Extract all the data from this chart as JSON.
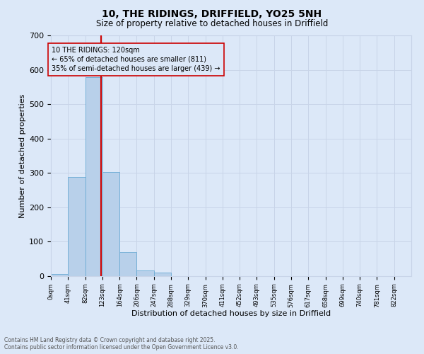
{
  "title1": "10, THE RIDINGS, DRIFFIELD, YO25 5NH",
  "title2": "Size of property relative to detached houses in Driffield",
  "xlabel": "Distribution of detached houses by size in Driffield",
  "ylabel": "Number of detached properties",
  "footer1": "Contains HM Land Registry data © Crown copyright and database right 2025.",
  "footer2": "Contains public sector information licensed under the Open Government Licence v3.0.",
  "bin_labels": [
    "0sqm",
    "41sqm",
    "82sqm",
    "123sqm",
    "164sqm",
    "206sqm",
    "247sqm",
    "288sqm",
    "329sqm",
    "370sqm",
    "411sqm",
    "452sqm",
    "493sqm",
    "535sqm",
    "576sqm",
    "617sqm",
    "658sqm",
    "699sqm",
    "740sqm",
    "781sqm",
    "822sqm"
  ],
  "bar_values": [
    7,
    289,
    578,
    303,
    70,
    16,
    10,
    0,
    0,
    0,
    0,
    0,
    0,
    0,
    0,
    0,
    0,
    0,
    0,
    0,
    0
  ],
  "bar_color": "#b8d0ea",
  "bar_edge_color": "#6aaad4",
  "grid_color": "#c8d4e8",
  "background_color": "#dce8f8",
  "vline_color": "#cc0000",
  "annotation_text": "10 THE RIDINGS: 120sqm\n← 65% of detached houses are smaller (811)\n35% of semi-detached houses are larger (439) →",
  "annotation_box_color": "#cc0000",
  "ylim": [
    0,
    700
  ],
  "yticks": [
    0,
    100,
    200,
    300,
    400,
    500,
    600,
    700
  ],
  "property_sqm": 120,
  "bin_width": 41,
  "n_bins": 21
}
